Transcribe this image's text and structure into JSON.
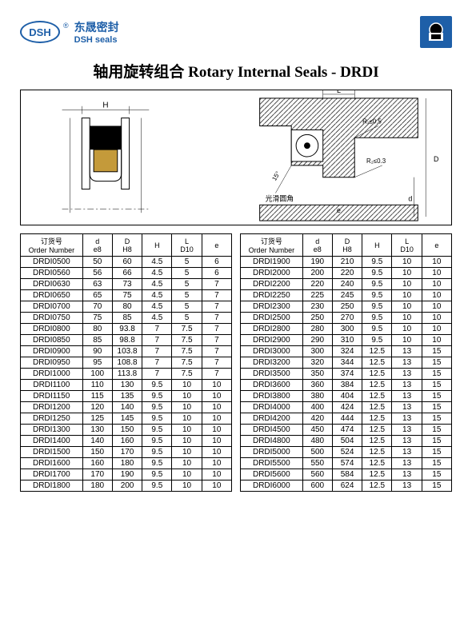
{
  "logo": {
    "abbr": "DSH",
    "reg": "®",
    "cn": "东晟密封",
    "en": "DSH seals"
  },
  "title": "轴用旋转组合 Rotary Internal Seals - DRDI",
  "diagram": {
    "labels": {
      "H": "H",
      "L": "L",
      "D": "D",
      "d": "d",
      "e": "e",
      "r1": "R₁≤0.5",
      "r2": "R₂≤0.3",
      "angle": "15°",
      "smooth": "光滑圆角"
    }
  },
  "headers": {
    "order_cn": "订货号",
    "order_en": "Order Number",
    "d": "d",
    "d_sub": "e8",
    "D": "D",
    "D_sub": "H8",
    "H": "H",
    "L": "L",
    "L_sub": "D10",
    "e": "e"
  },
  "left_rows": [
    [
      "DRDI0500",
      "50",
      "60",
      "4.5",
      "5",
      "6"
    ],
    [
      "DRDI0560",
      "56",
      "66",
      "4.5",
      "5",
      "6"
    ],
    [
      "DRDI0630",
      "63",
      "73",
      "4.5",
      "5",
      "7"
    ],
    [
      "DRDI0650",
      "65",
      "75",
      "4.5",
      "5",
      "7"
    ],
    [
      "DRDI0700",
      "70",
      "80",
      "4.5",
      "5",
      "7"
    ],
    [
      "DRDI0750",
      "75",
      "85",
      "4.5",
      "5",
      "7"
    ],
    [
      "DRDI0800",
      "80",
      "93.8",
      "7",
      "7.5",
      "7"
    ],
    [
      "DRDI0850",
      "85",
      "98.8",
      "7",
      "7.5",
      "7"
    ],
    [
      "DRDI0900",
      "90",
      "103.8",
      "7",
      "7.5",
      "7"
    ],
    [
      "DRDI0950",
      "95",
      "108.8",
      "7",
      "7.5",
      "7"
    ],
    [
      "DRDI1000",
      "100",
      "113.8",
      "7",
      "7.5",
      "7"
    ],
    [
      "DRDI1100",
      "110",
      "130",
      "9.5",
      "10",
      "10"
    ],
    [
      "DRDI1150",
      "115",
      "135",
      "9.5",
      "10",
      "10"
    ],
    [
      "DRDI1200",
      "120",
      "140",
      "9.5",
      "10",
      "10"
    ],
    [
      "DRDI1250",
      "125",
      "145",
      "9.5",
      "10",
      "10"
    ],
    [
      "DRDI1300",
      "130",
      "150",
      "9.5",
      "10",
      "10"
    ],
    [
      "DRDI1400",
      "140",
      "160",
      "9.5",
      "10",
      "10"
    ],
    [
      "DRDI1500",
      "150",
      "170",
      "9.5",
      "10",
      "10"
    ],
    [
      "DRDI1600",
      "160",
      "180",
      "9.5",
      "10",
      "10"
    ],
    [
      "DRDI1700",
      "170",
      "190",
      "9.5",
      "10",
      "10"
    ],
    [
      "DRDI1800",
      "180",
      "200",
      "9.5",
      "10",
      "10"
    ]
  ],
  "right_rows": [
    [
      "DRDI1900",
      "190",
      "210",
      "9.5",
      "10",
      "10"
    ],
    [
      "DRDI2000",
      "200",
      "220",
      "9.5",
      "10",
      "10"
    ],
    [
      "DRDI2200",
      "220",
      "240",
      "9.5",
      "10",
      "10"
    ],
    [
      "DRDI2250",
      "225",
      "245",
      "9.5",
      "10",
      "10"
    ],
    [
      "DRDI2300",
      "230",
      "250",
      "9.5",
      "10",
      "10"
    ],
    [
      "DRDI2500",
      "250",
      "270",
      "9.5",
      "10",
      "10"
    ],
    [
      "DRDI2800",
      "280",
      "300",
      "9.5",
      "10",
      "10"
    ],
    [
      "DRDI2900",
      "290",
      "310",
      "9.5",
      "10",
      "10"
    ],
    [
      "DRDI3000",
      "300",
      "324",
      "12.5",
      "13",
      "15"
    ],
    [
      "DRDI3200",
      "320",
      "344",
      "12.5",
      "13",
      "15"
    ],
    [
      "DRDI3500",
      "350",
      "374",
      "12.5",
      "13",
      "15"
    ],
    [
      "DRDI3600",
      "360",
      "384",
      "12.5",
      "13",
      "15"
    ],
    [
      "DRDI3800",
      "380",
      "404",
      "12.5",
      "13",
      "15"
    ],
    [
      "DRDI4000",
      "400",
      "424",
      "12.5",
      "13",
      "15"
    ],
    [
      "DRDI4200",
      "420",
      "444",
      "12.5",
      "13",
      "15"
    ],
    [
      "DRDI4500",
      "450",
      "474",
      "12.5",
      "13",
      "15"
    ],
    [
      "DRDI4800",
      "480",
      "504",
      "12.5",
      "13",
      "15"
    ],
    [
      "DRDI5000",
      "500",
      "524",
      "12.5",
      "13",
      "15"
    ],
    [
      "DRDI5500",
      "550",
      "574",
      "12.5",
      "13",
      "15"
    ],
    [
      "DRDI5600",
      "560",
      "584",
      "12.5",
      "13",
      "15"
    ],
    [
      "DRDI6000",
      "600",
      "624",
      "12.5",
      "13",
      "15"
    ]
  ]
}
